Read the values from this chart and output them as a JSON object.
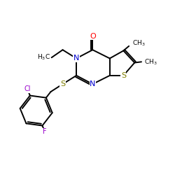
{
  "bg_color": "#ffffff",
  "bond_color": "#000000",
  "bond_lw": 1.4,
  "atom_colors": {
    "O": "#ff0000",
    "N": "#0000cd",
    "S": "#808000",
    "Cl": "#9900cc",
    "F": "#9900cc",
    "C": "#000000"
  },
  "font_size": 8.0,
  "font_size_sub": 6.5
}
